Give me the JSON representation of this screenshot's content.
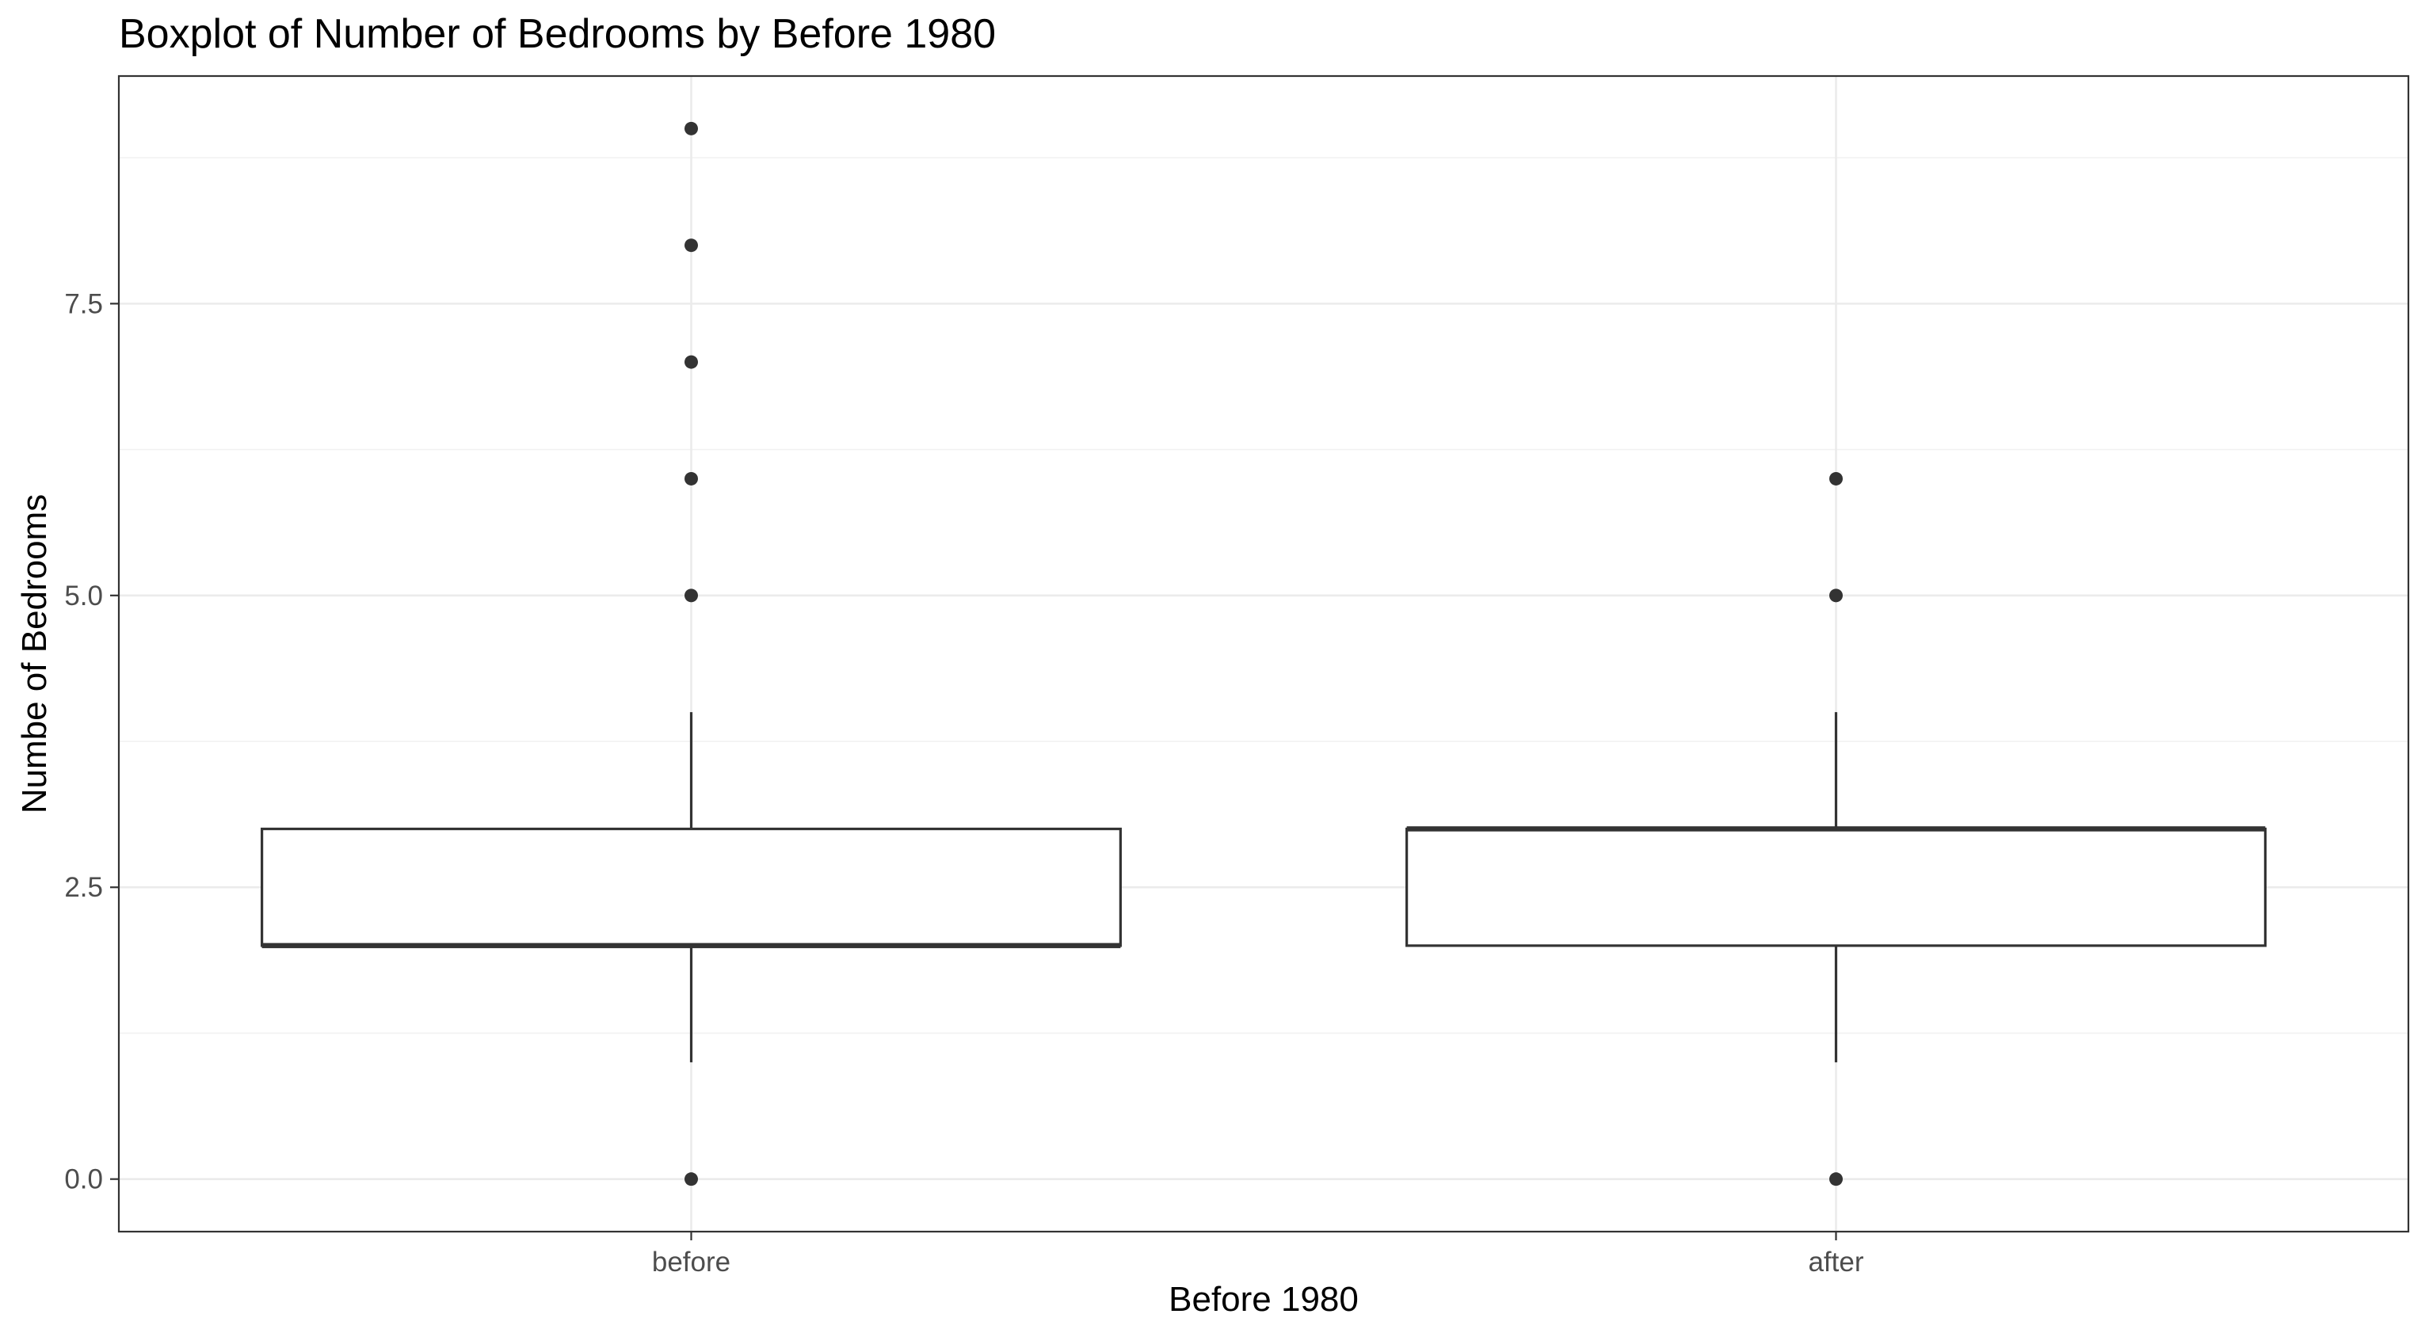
{
  "chart_data": {
    "type": "boxplot",
    "title": "Boxplot of Number of Bedrooms by Before 1980",
    "xlabel": "Before 1980",
    "ylabel": "Numbe of Bedrooms",
    "categories": [
      "before",
      "after"
    ],
    "ylim": [
      -0.45,
      9.45
    ],
    "yticks": [
      0.0,
      2.5,
      5.0,
      7.5
    ],
    "ytick_labels": [
      "0.0",
      "2.5",
      "5.0",
      "7.5"
    ],
    "grid": true,
    "boxes": [
      {
        "category": "before",
        "whisker_low": 1,
        "q1": 2,
        "median": 2,
        "q3": 3,
        "whisker_high": 4,
        "outliers": [
          0,
          5,
          6,
          7,
          8,
          9
        ]
      },
      {
        "category": "after",
        "whisker_low": 1,
        "q1": 2,
        "median": 3,
        "q3": 3,
        "whisker_high": 4,
        "outliers": [
          0,
          5,
          6
        ]
      }
    ],
    "colors": {
      "background": "#ffffff",
      "panel_border": "#333333",
      "grid_major": "#ebebeb",
      "grid_minor": "#f2f2f2",
      "box_fill": "#ffffff",
      "box_line": "#333333",
      "outlier": "#333333",
      "tick_label": "#4d4d4d",
      "text": "#000000"
    }
  }
}
